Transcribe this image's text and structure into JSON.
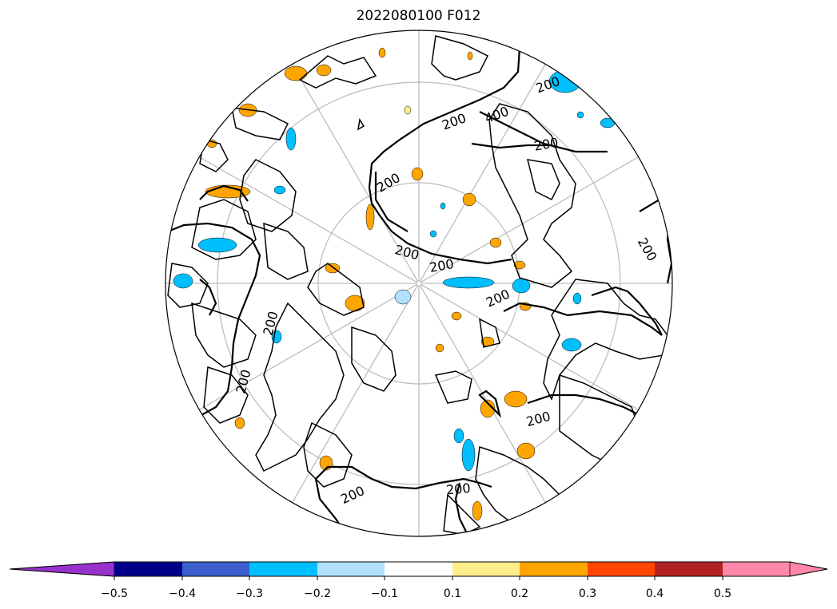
{
  "title": "2022080100 F012",
  "contour_labels": [
    "200",
    "400",
    "200",
    "200",
    "200",
    "200",
    "200",
    "200",
    "200",
    "200",
    "200",
    "200",
    "200",
    "200"
  ],
  "colorbar": {
    "ticks": [
      "−0.5",
      "−0.4",
      "−0.3",
      "−0.2",
      "−0.1",
      "0.1",
      "0.2",
      "0.3",
      "0.4",
      "0.5"
    ],
    "under_color": "#9932cc",
    "over_color": "#ff88aa",
    "colors": [
      "#9932cc",
      "#00008b",
      "#3a5fcd",
      "#00bfff",
      "#b0e2ff",
      "#ffffff",
      "#ffec8b",
      "#ffa500",
      "#ff4500",
      "#b22222",
      "#ff88aa"
    ]
  },
  "colors": {
    "positive_fill": "#ffa500",
    "positive_light": "#ffec8b",
    "negative_fill": "#00bfff",
    "negative_light": "#b0e2ff",
    "grid": "#bebebe",
    "land": "#000000"
  }
}
